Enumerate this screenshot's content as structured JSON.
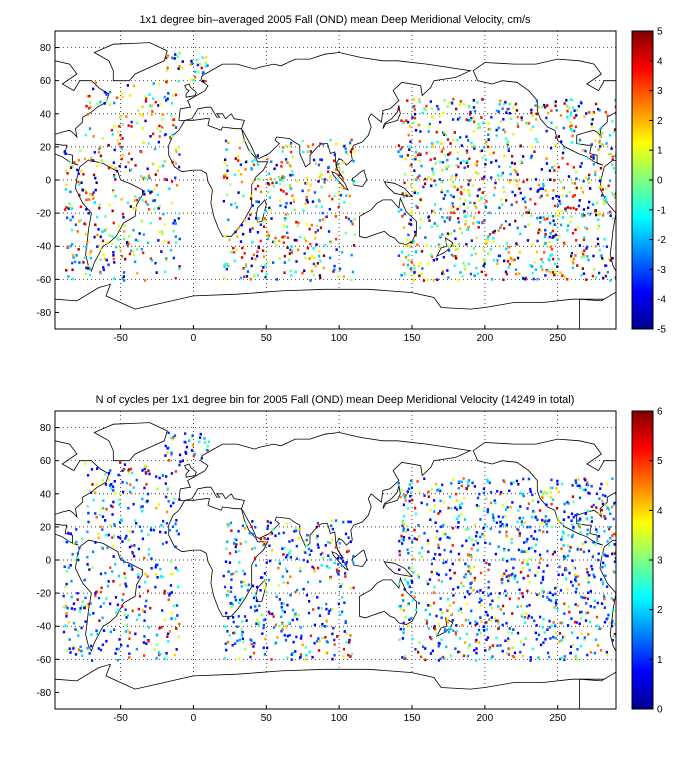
{
  "chart_data": [
    {
      "type": "heatmap",
      "title": "1x1 degree bin–averaged 2005 Fall (OND) mean Deep Meridional Velocity, cm/s",
      "x_ticks": [
        -50,
        0,
        50,
        100,
        150,
        200,
        250
      ],
      "y_ticks": [
        -80,
        -60,
        -40,
        -20,
        0,
        20,
        40,
        60,
        80
      ],
      "xlim": [
        -95,
        290
      ],
      "ylim": [
        -90,
        90
      ],
      "grid": "dotted",
      "colorbar": {
        "ticks": [
          -5,
          -4,
          -3,
          -2,
          -1,
          0,
          1,
          2,
          3,
          4,
          5
        ],
        "range": [
          -5,
          5
        ],
        "colormap": "jet"
      }
    },
    {
      "type": "heatmap",
      "title": "N of cycles per 1x1 degree bin for 2005 Fall (OND) mean Deep Meridional Velocity (14249 in total)",
      "x_ticks": [
        -50,
        0,
        50,
        100,
        150,
        200,
        250
      ],
      "y_ticks": [
        -80,
        -60,
        -40,
        -20,
        0,
        20,
        40,
        60,
        80
      ],
      "xlim": [
        -95,
        290
      ],
      "ylim": [
        -90,
        90
      ],
      "grid": "dotted",
      "colorbar": {
        "ticks": [
          0,
          1,
          2,
          3,
          4,
          5,
          6
        ],
        "range": [
          0,
          6
        ],
        "colormap": "jet"
      }
    }
  ]
}
